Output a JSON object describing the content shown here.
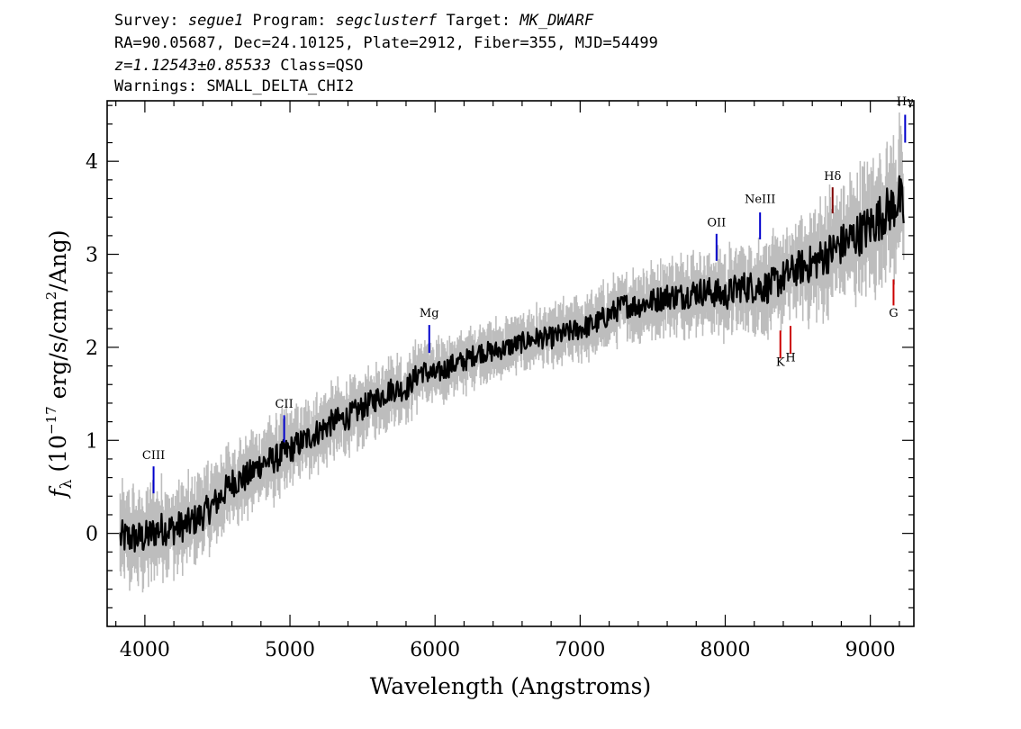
{
  "header": {
    "line1": {
      "survey_label": "Survey: ",
      "survey": "segue1",
      "program_label": " Program: ",
      "program": "segclusterf",
      "target_label": " Target: ",
      "target": "MK_DWARF"
    },
    "line2": "RA=90.05687, Dec=24.10125, Plate=2912, Fiber=355, MJD=54499",
    "line3": {
      "redshift": "z=1.12543±0.85533",
      "class": " Class=QSO"
    },
    "line4": "Warnings: SMALL_DELTA_CHI2"
  },
  "chart_data": {
    "type": "line",
    "xlabel": "Wavelength (Angstroms)",
    "ylabel_parts": [
      "f",
      "λ",
      " (10",
      "−17",
      " erg/s/cm",
      "2",
      "/Ang)"
    ],
    "xlim": [
      3740,
      9300
    ],
    "ylim": [
      -1,
      4.65
    ],
    "xticks": [
      4000,
      5000,
      6000,
      7000,
      8000,
      9000
    ],
    "yticks": [
      0,
      1,
      2,
      3,
      4
    ],
    "grid": false,
    "series": [
      {
        "role": "flux",
        "color": "#000000",
        "x": [
          3830,
          3900,
          4000,
          4100,
          4200,
          4300,
          4400,
          4500,
          4600,
          4700,
          4800,
          4900,
          5000,
          5100,
          5200,
          5300,
          5400,
          5500,
          5600,
          5700,
          5800,
          5900,
          6000,
          6100,
          6200,
          6300,
          6400,
          6500,
          6600,
          6700,
          6800,
          6900,
          7000,
          7100,
          7200,
          7300,
          7400,
          7500,
          7600,
          7700,
          7800,
          7900,
          8000,
          8100,
          8200,
          8300,
          8400,
          8500,
          8600,
          8700,
          8800,
          8900,
          9000,
          9100,
          9150,
          9200,
          9230
        ],
        "y": [
          -0.05,
          -0.05,
          -0.05,
          0.05,
          0.05,
          0.1,
          0.2,
          0.35,
          0.55,
          0.6,
          0.75,
          0.8,
          0.9,
          1.0,
          1.1,
          1.2,
          1.25,
          1.35,
          1.45,
          1.55,
          1.55,
          1.75,
          1.7,
          1.8,
          1.85,
          1.95,
          1.95,
          2.0,
          2.05,
          2.1,
          2.1,
          2.15,
          2.2,
          2.25,
          2.35,
          2.45,
          2.45,
          2.5,
          2.55,
          2.55,
          2.6,
          2.6,
          2.55,
          2.65,
          2.65,
          2.65,
          2.75,
          2.85,
          2.9,
          3.0,
          3.1,
          3.2,
          3.3,
          3.45,
          3.5,
          3.6,
          3.45
        ]
      },
      {
        "role": "error",
        "color": "#bdbdbd",
        "x": [
          3830,
          4500,
          5500,
          6500,
          7500,
          8500,
          9230
        ],
        "y_err": [
          0.35,
          0.3,
          0.25,
          0.2,
          0.25,
          0.35,
          0.5
        ]
      }
    ],
    "emission_lines": [
      {
        "label": "CIII",
        "x": 4060,
        "y_label": 0.8,
        "color": "#0000cc",
        "mark_top": 0.72,
        "mark_bottom": 0.43
      },
      {
        "label": "CII",
        "x": 4960,
        "y_label": 1.35,
        "color": "#0000cc",
        "mark_top": 1.27,
        "mark_bottom": 0.98
      },
      {
        "label": "Mg",
        "x": 5960,
        "y_label": 2.33,
        "color": "#0000cc",
        "mark_top": 2.24,
        "mark_bottom": 1.94
      },
      {
        "label": "OII",
        "x": 7940,
        "y_label": 3.3,
        "color": "#0000cc",
        "mark_top": 3.22,
        "mark_bottom": 2.93
      },
      {
        "label": "NeIII",
        "x": 8240,
        "y_label": 3.55,
        "color": "#0000cc",
        "mark_top": 3.45,
        "mark_bottom": 3.16
      },
      {
        "label": "Hγ",
        "x": 9240,
        "y_label": 4.6,
        "color": "#0000cc",
        "mark_top": 4.5,
        "mark_bottom": 4.2
      }
    ],
    "absorption_lines": [
      {
        "label": "Hδ",
        "x": 8740,
        "y_label": 3.8,
        "color": "#800000",
        "mark_top": 3.72,
        "mark_bottom": 3.44
      },
      {
        "label": "G",
        "x": 9160,
        "y_label": 2.33,
        "color": "#cc0000",
        "mark_top": 2.73,
        "mark_bottom": 2.45
      },
      {
        "label": "K",
        "x": 8380,
        "y_label": 1.8,
        "color": "#cc0000",
        "mark_top": 2.18,
        "mark_bottom": 1.88
      },
      {
        "label": "H",
        "x": 8450,
        "y_label": 1.85,
        "color": "#cc0000",
        "mark_top": 2.23,
        "mark_bottom": 1.93
      }
    ]
  }
}
